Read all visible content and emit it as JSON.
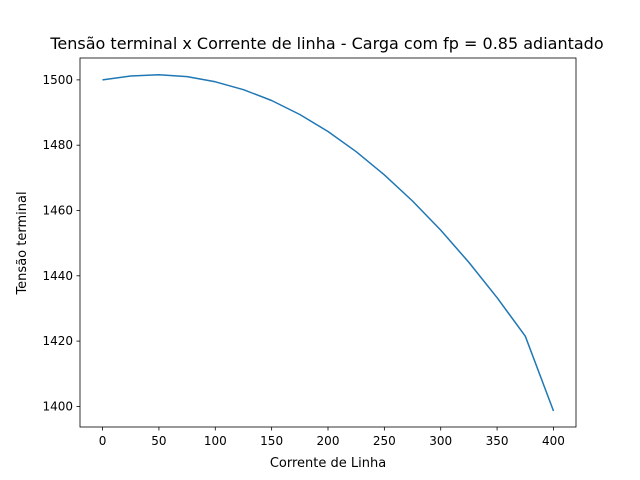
{
  "chart_data": {
    "type": "line",
    "title": "Tensão terminal x Corrente de linha - Carga com fp = 0.85 adiantado",
    "xlabel": "Corrente de Linha",
    "ylabel": "Tensão terminal",
    "xlim": [
      -20,
      420
    ],
    "ylim": [
      1393.7,
      1506.7
    ],
    "xticks": [
      0,
      50,
      100,
      150,
      200,
      250,
      300,
      350,
      400
    ],
    "yticks": [
      1400,
      1420,
      1440,
      1460,
      1480,
      1500
    ],
    "grid": false,
    "series": [
      {
        "color": "#1f77b4",
        "x": [
          0,
          25,
          50,
          75,
          100,
          125,
          150,
          175,
          200,
          225,
          250,
          275,
          300,
          325,
          350,
          375,
          400
        ],
        "y": [
          1500.0,
          1501.2,
          1501.6,
          1501.0,
          1499.4,
          1497.0,
          1493.7,
          1489.4,
          1484.2,
          1478.0,
          1470.9,
          1462.9,
          1454.0,
          1444.1,
          1433.3,
          1421.5,
          1398.6
        ]
      }
    ]
  }
}
